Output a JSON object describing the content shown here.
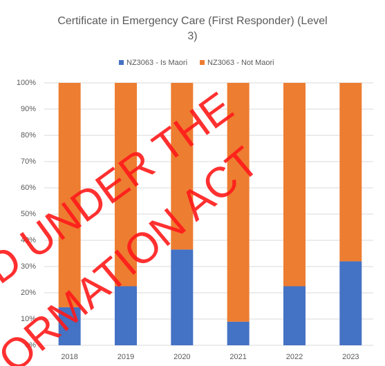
{
  "chart_data": {
    "type": "stacked_bar",
    "title": "Certificate in Emergency Care (First Responder) (Level 3)",
    "categories": [
      "2018",
      "2019",
      "2020",
      "2021",
      "2022",
      "2023"
    ],
    "series": [
      {
        "name": "NZ3063 - Is Maori",
        "color": "#4472c4",
        "values": [
          14.5,
          22.5,
          36.5,
          9,
          22.5,
          32
        ]
      },
      {
        "name": "NZ3063 - Not Maori",
        "color": "#ed7d31",
        "values": [
          85.5,
          77.5,
          63.5,
          91,
          77.5,
          68
        ]
      }
    ],
    "ylim": [
      0,
      100
    ],
    "yticks": [
      {
        "value": 0,
        "label": "0%"
      },
      {
        "value": 10,
        "label": "10%"
      },
      {
        "value": 20,
        "label": "20%"
      },
      {
        "value": 30,
        "label": "30%"
      },
      {
        "value": 40,
        "label": "40%"
      },
      {
        "value": 50,
        "label": "50%"
      },
      {
        "value": 60,
        "label": "60%"
      },
      {
        "value": 70,
        "label": "70%"
      },
      {
        "value": 80,
        "label": "80%"
      },
      {
        "value": 90,
        "label": "90%"
      },
      {
        "value": 100,
        "label": "100%"
      }
    ],
    "grid": true,
    "legend": "top",
    "watermark": [
      "D UNDER THE",
      "ORMATION ACT"
    ]
  }
}
